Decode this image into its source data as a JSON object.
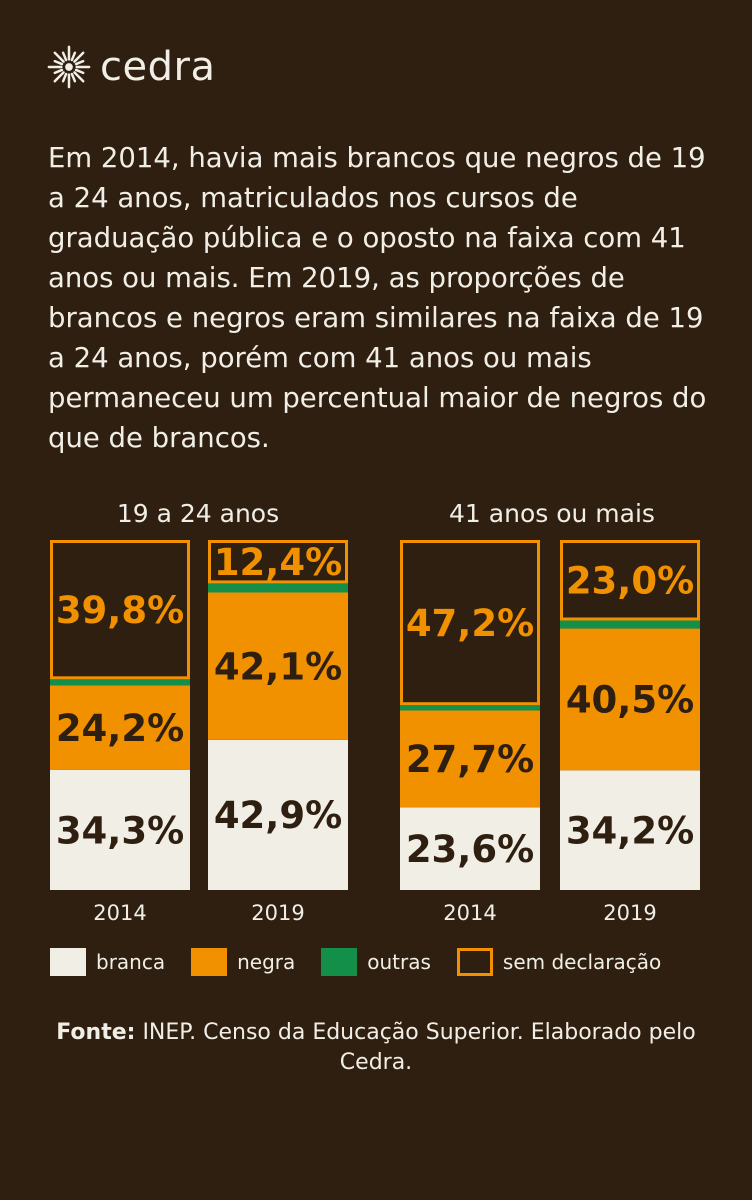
{
  "brand": {
    "name": "cedra",
    "logo_icon": "sun-icon"
  },
  "intro": "Em 2014, havia mais brancos que negros de 19 a 24 anos, matriculados nos cursos de graduação pública e o oposto na faixa com 41 anos ou mais. Em 2019, as proporções de brancos e negros eram similares na faixa de 19 a 24 anos, porém com 41 anos ou mais permaneceu um percentual maior de negros do que de brancos.",
  "chart_data": {
    "type": "bar",
    "stacked": true,
    "groups": [
      {
        "title": "19 a 24 anos",
        "bars": [
          {
            "year": "2014",
            "branca": 34.3,
            "negra": 24.2,
            "outras": 1.7,
            "sem_declaracao": 39.8,
            "labels": {
              "branca": "34,3%",
              "negra": "24,2%",
              "sem_declaracao": "39,8%"
            }
          },
          {
            "year": "2019",
            "branca": 42.9,
            "negra": 42.1,
            "outras": 2.6,
            "sem_declaracao": 12.4,
            "labels": {
              "branca": "42,9%",
              "negra": "42,1%",
              "sem_declaracao": "12,4%"
            }
          }
        ]
      },
      {
        "title": "41 anos ou mais",
        "bars": [
          {
            "year": "2014",
            "branca": 23.6,
            "negra": 27.7,
            "outras": 1.5,
            "sem_declaracao": 47.2,
            "labels": {
              "branca": "23,6%",
              "negra": "27,7%",
              "sem_declaracao": "47,2%"
            }
          },
          {
            "year": "2019",
            "branca": 34.2,
            "negra": 40.5,
            "outras": 2.3,
            "sem_declaracao": 23.0,
            "labels": {
              "branca": "34,2%",
              "negra": "40,5%",
              "sem_declaracao": "23,0%"
            }
          }
        ]
      }
    ],
    "series": [
      {
        "key": "branca",
        "name": "branca",
        "color": "#f1eee6"
      },
      {
        "key": "negra",
        "name": "negra",
        "color": "#f29100"
      },
      {
        "key": "outras",
        "name": "outras",
        "color": "#138f4a"
      },
      {
        "key": "sem_declaracao",
        "name": "sem declaração",
        "color": "#2f1f10",
        "border": "#f29100"
      }
    ],
    "ylim": [
      0,
      100
    ],
    "legend": "bottom"
  },
  "source": {
    "label": "Fonte:",
    "text": " INEP. Censo da Educação Superior. Elaborado pelo Cedra."
  },
  "colors": {
    "background": "#2f1f10",
    "text": "#f1eee6",
    "dark_text": "#2f1f10",
    "accent": "#f29100"
  }
}
